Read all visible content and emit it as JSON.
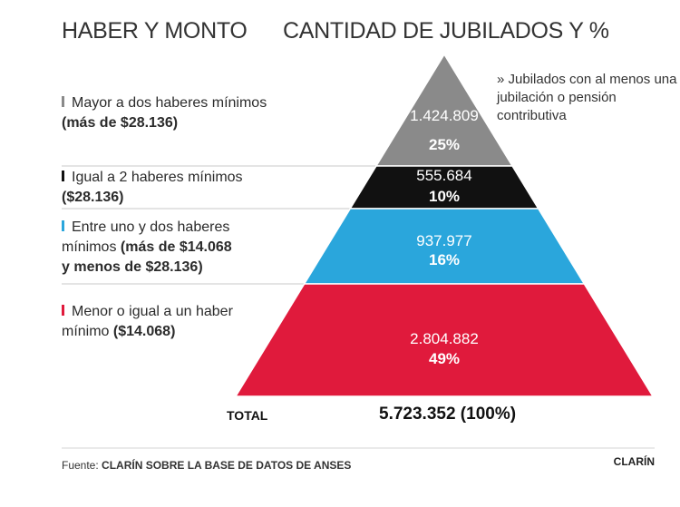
{
  "header": {
    "left": "HABER Y MONTO",
    "right": "CANTIDAD DE JUBILADOS Y %"
  },
  "note": "» Jubilados con al menos una jubilación o pensión contributiva",
  "chart_data": {
    "type": "pyramid",
    "title": "CANTIDAD DE JUBILADOS Y %",
    "segments": [
      {
        "category": "Mayor a dos haberes mínimos",
        "detail": "(más de $28.136)",
        "value_label": "1.424.809",
        "value": 1424809,
        "percent": 25,
        "percent_label": "25%",
        "color": "#8a8a8a"
      },
      {
        "category": "Igual a 2 haberes mínimos",
        "detail": "($28.136)",
        "value_label": "555.684",
        "value": 555684,
        "percent": 10,
        "percent_label": "10%",
        "color": "#111111"
      },
      {
        "category": "Entre uno y dos haberes mínimos",
        "detail": "(más de $14.068 y menos de $28.136)",
        "value_label": "937.977",
        "value": 937977,
        "percent": 16,
        "percent_label": "16%",
        "color": "#2aa6dc"
      },
      {
        "category": "Menor o igual a un haber mínimo",
        "detail": "($14.068)",
        "value_label": "2.804.882",
        "value": 2804882,
        "percent": 49,
        "percent_label": "49%",
        "color": "#e01a3c"
      }
    ],
    "total_label": "TOTAL",
    "total_value": "5.723.352 (100%)"
  },
  "legend": [
    {
      "text": "Mayor a dos haberes mínimos",
      "bold": "(más de $28.136)"
    },
    {
      "text": "Igual a 2 haberes mínimos",
      "bold": "($28.136)"
    },
    {
      "text1": "Entre uno y dos haberes",
      "text2": "mínimos ",
      "bold1": "(más de $14.068",
      "bold2": "y menos de $28.136)"
    },
    {
      "text1": "Menor o igual a un haber",
      "text2": "mínimo ",
      "bold2": "($14.068)"
    }
  ],
  "footer": {
    "prefix": "Fuente: ",
    "source": "CLARÍN SOBRE LA BASE DE DATOS DE ANSES",
    "brand": "CLARÍN"
  }
}
